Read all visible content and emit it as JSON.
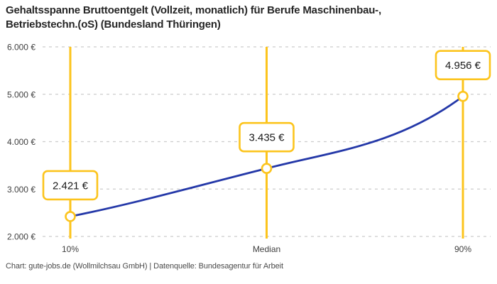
{
  "header": {
    "title_line1": "Gehaltsspanne Bruttoentgelt (Vollzeit, monatlich) für Berufe Maschinenbau-,",
    "title_line2": "Betriebstechn.(oS) (Bundesland Thüringen)"
  },
  "footer": {
    "attribution": "Chart: gute-jobs.de (Wollmilchsau GmbH) | Datenquelle: Bundesagentur für Arbeit"
  },
  "chart_data": {
    "type": "line",
    "title": "Gehaltsspanne Bruttoentgelt (Vollzeit, monatlich) für Berufe Maschinenbau-, Betriebstechn.(oS) (Bundesland Thüringen)",
    "categories": [
      "10%",
      "Median",
      "90%"
    ],
    "values": [
      2421,
      3435,
      4956
    ],
    "value_labels": [
      "2.421 €",
      "3.435 €",
      "4.956 €"
    ],
    "ylim": [
      2000,
      6000
    ],
    "ytick_step": 1000,
    "ytick_labels": [
      "2.000 €",
      "3.000 €",
      "4.000 €",
      "5.000 €",
      "6.000 €"
    ],
    "grid": "horizontal-dashed",
    "legend": "none",
    "colors": {
      "line": "#2438a8",
      "accent": "#fcc41d",
      "grid": "#cccccc",
      "axis_text": "#3f3f3f",
      "label_text": "#1a1a1a",
      "background": "#ffffff"
    }
  }
}
